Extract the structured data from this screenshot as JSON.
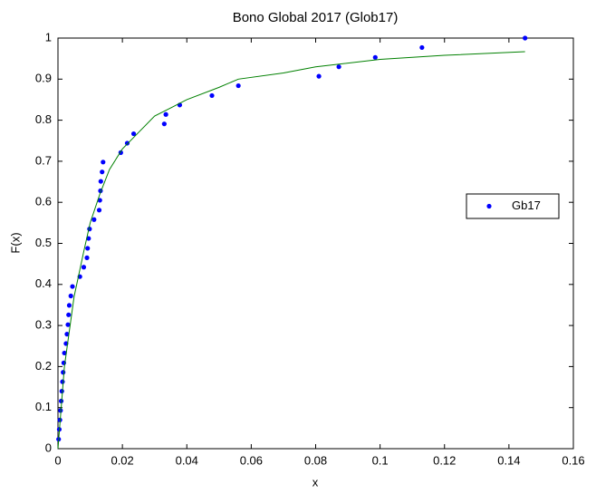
{
  "chart_data": {
    "type": "scatter",
    "title": "Bono Global 2017 (Glob17)",
    "x_label": "x",
    "y_label": "F(x)",
    "xlim": [
      0,
      0.16
    ],
    "xticks": [
      0,
      0.02,
      0.04,
      0.06,
      0.08,
      0.1,
      0.12,
      0.14,
      0.16
    ],
    "ylim": [
      0,
      1
    ],
    "yticks": [
      0,
      0.1,
      0.2,
      0.3,
      0.4,
      0.5,
      0.6,
      0.7,
      0.8,
      0.9,
      1
    ],
    "grid": false,
    "legend": "right",
    "series": [
      {
        "name": "Gb17",
        "type": "scatter",
        "color": "#0000ff",
        "x": [
          0.0002,
          0.0004,
          0.0006,
          0.0008,
          0.001,
          0.0012,
          0.0014,
          0.0016,
          0.0018,
          0.002,
          0.0025,
          0.0028,
          0.0031,
          0.0033,
          0.0035,
          0.004,
          0.0045,
          0.0068,
          0.008,
          0.009,
          0.0092,
          0.0095,
          0.0098,
          0.0112,
          0.0128,
          0.013,
          0.0132,
          0.0133,
          0.0137,
          0.014,
          0.0195,
          0.0215,
          0.0235,
          0.033,
          0.0335,
          0.0378,
          0.0478,
          0.056,
          0.081,
          0.0872,
          0.0985,
          0.113,
          0.145
        ],
        "values": [
          0.023,
          0.047,
          0.07,
          0.093,
          0.116,
          0.14,
          0.163,
          0.186,
          0.209,
          0.233,
          0.256,
          0.279,
          0.302,
          0.326,
          0.349,
          0.372,
          0.395,
          0.419,
          0.442,
          0.465,
          0.488,
          0.512,
          0.535,
          0.558,
          0.581,
          0.605,
          0.628,
          0.651,
          0.674,
          0.698,
          0.721,
          0.744,
          0.767,
          0.791,
          0.814,
          0.837,
          0.86,
          0.884,
          0.907,
          0.93,
          0.953,
          0.977,
          1
        ]
      },
      {
        "type": "line",
        "color": "#008000",
        "x": [
          0,
          0.002,
          0.005,
          0.008,
          0.01,
          0.013,
          0.016,
          0.02,
          0.025,
          0.03,
          0.035,
          0.04,
          0.05,
          0.056,
          0.07,
          0.08,
          0.1,
          0.12,
          0.145
        ],
        "values": [
          0,
          0.2,
          0.37,
          0.48,
          0.55,
          0.62,
          0.68,
          0.73,
          0.77,
          0.81,
          0.83,
          0.85,
          0.88,
          0.9,
          0.915,
          0.93,
          0.948,
          0.958,
          0.967
        ]
      }
    ]
  }
}
